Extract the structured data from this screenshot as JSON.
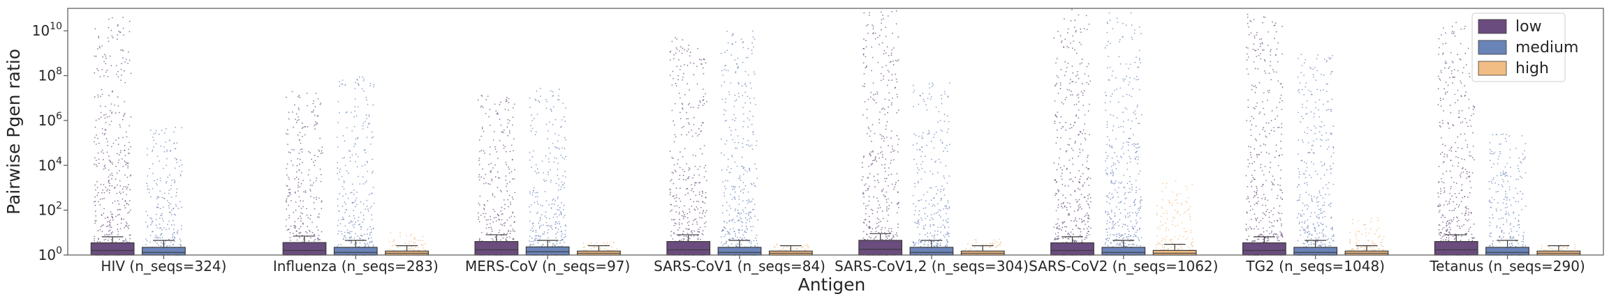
{
  "chart_data": {
    "type": "box",
    "xlabel": "Antigen",
    "ylabel": "Pairwise Pgen ratio",
    "yscale": "log",
    "ylim": [
      1,
      100000000000.0
    ],
    "yticks": [
      {
        "value": 1,
        "base": "10",
        "exp": "0"
      },
      {
        "value": 100,
        "base": "10",
        "exp": "2"
      },
      {
        "value": 10000,
        "base": "10",
        "exp": "4"
      },
      {
        "value": 1000000,
        "base": "10",
        "exp": "6"
      },
      {
        "value": 100000000,
        "base": "10",
        "exp": "8"
      },
      {
        "value": 10000000000,
        "base": "10",
        "exp": "10"
      }
    ],
    "grid": false,
    "legend_position": "top-right",
    "categories": [
      "HIV (n_seqs=324)",
      "Influenza (n_seqs=283)",
      "MERS-CoV (n_seqs=97)",
      "SARS-CoV1 (n_seqs=84)",
      "SARS-CoV1,2 (n_seqs=304)",
      "SARS-CoV2 (n_seqs=1062)",
      "TG2 (n_seqs=1048)",
      "Tetanus (n_seqs=290)"
    ],
    "series": [
      {
        "name": "low",
        "color": "#6b4c7e",
        "boxes": [
          {
            "q1": 1.0,
            "median": 1.6,
            "q3": 3.5,
            "whisker_hi": 6.5,
            "max": 50000000000.0
          },
          {
            "q1": 1.0,
            "median": 1.6,
            "q3": 3.6,
            "whisker_hi": 7.0,
            "max": 20000000.0
          },
          {
            "q1": 1.0,
            "median": 1.7,
            "q3": 4.0,
            "whisker_hi": 8.0,
            "max": 20000000.0
          },
          {
            "q1": 1.0,
            "median": 1.7,
            "q3": 4.0,
            "whisker_hi": 8.0,
            "max": 5000000000.0
          },
          {
            "q1": 1.0,
            "median": 1.8,
            "q3": 4.5,
            "whisker_hi": 9.0,
            "max": 80000000000.0
          },
          {
            "q1": 1.0,
            "median": 1.6,
            "q3": 3.5,
            "whisker_hi": 6.5,
            "max": 100000000000.0
          },
          {
            "q1": 1.0,
            "median": 1.6,
            "q3": 3.5,
            "whisker_hi": 6.5,
            "max": 70000000000.0
          },
          {
            "q1": 1.0,
            "median": 1.7,
            "q3": 4.0,
            "whisker_hi": 8.0,
            "max": 30000000000.0
          }
        ]
      },
      {
        "name": "medium",
        "color": "#6a84b8",
        "boxes": [
          {
            "q1": 1.0,
            "median": 1.3,
            "q3": 2.2,
            "whisker_hi": 4.5,
            "max": 500000.0
          },
          {
            "q1": 1.0,
            "median": 1.3,
            "q3": 2.2,
            "whisker_hi": 4.5,
            "max": 100000000.0
          },
          {
            "q1": 1.0,
            "median": 1.4,
            "q3": 2.3,
            "whisker_hi": 4.5,
            "max": 30000000.0
          },
          {
            "q1": 1.0,
            "median": 1.3,
            "q3": 2.2,
            "whisker_hi": 4.5,
            "max": 10000000000.0
          },
          {
            "q1": 1.0,
            "median": 1.3,
            "q3": 2.2,
            "whisker_hi": 4.5,
            "max": 50000000.0
          },
          {
            "q1": 1.0,
            "median": 1.3,
            "q3": 2.2,
            "whisker_hi": 4.5,
            "max": 80000000000.0
          },
          {
            "q1": 1.0,
            "median": 1.3,
            "q3": 2.2,
            "whisker_hi": 4.5,
            "max": 1000000000.0
          },
          {
            "q1": 1.0,
            "median": 1.3,
            "q3": 2.2,
            "whisker_hi": 4.5,
            "max": 300000.0
          }
        ]
      },
      {
        "name": "high",
        "color": "#f2bd85",
        "boxes": [
          null,
          {
            "q1": 1.0,
            "median": 1.2,
            "q3": 1.5,
            "whisker_hi": 2.6,
            "max": 10
          },
          {
            "q1": 1.0,
            "median": 1.2,
            "q3": 1.5,
            "whisker_hi": 2.6,
            "max": 4
          },
          {
            "q1": 1.0,
            "median": 1.2,
            "q3": 1.5,
            "whisker_hi": 2.6,
            "max": 3
          },
          {
            "q1": 1.0,
            "median": 1.2,
            "q3": 1.5,
            "whisker_hi": 2.6,
            "max": 5
          },
          {
            "q1": 1.0,
            "median": 1.2,
            "q3": 1.6,
            "whisker_hi": 3.0,
            "max": 2000
          },
          {
            "q1": 1.0,
            "median": 1.2,
            "q3": 1.5,
            "whisker_hi": 2.6,
            "max": 50
          },
          {
            "q1": 1.0,
            "median": 1.2,
            "q3": 1.5,
            "whisker_hi": 2.6,
            "max": 3
          }
        ]
      }
    ]
  }
}
